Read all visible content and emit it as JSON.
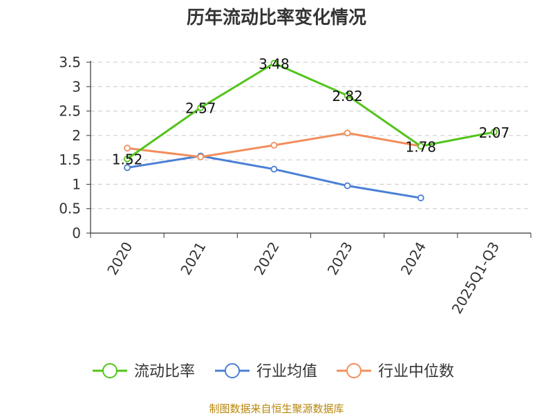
{
  "chart_data": {
    "type": "line",
    "title": "历年流动比率变化情况",
    "categories": [
      "2020",
      "2021",
      "2022",
      "2023",
      "2024",
      "2025Q1-Q3"
    ],
    "ylim": [
      0,
      3.5
    ],
    "yticks": [
      "0",
      "0.5",
      "1",
      "1.5",
      "2",
      "2.5",
      "3",
      "3.5"
    ],
    "grid": "horizontal-dashed",
    "legend_position": "bottom",
    "series": [
      {
        "name": "流动比率",
        "color": "#52c41a",
        "values": [
          1.52,
          2.57,
          3.48,
          2.82,
          1.78,
          2.07
        ],
        "labels": [
          "1.52",
          "2.57",
          "3.48",
          "2.82",
          "1.78",
          "2.07"
        ]
      },
      {
        "name": "行业均值",
        "color": "#4a7fd6",
        "values": [
          1.34,
          1.58,
          1.31,
          0.97,
          0.72,
          null
        ]
      },
      {
        "name": "行业中位数",
        "color": "#f28e5c",
        "values": [
          1.74,
          1.56,
          1.8,
          2.05,
          1.78,
          null
        ]
      }
    ]
  },
  "footer": {
    "source": "制图数据来自恒生聚源数据库"
  }
}
